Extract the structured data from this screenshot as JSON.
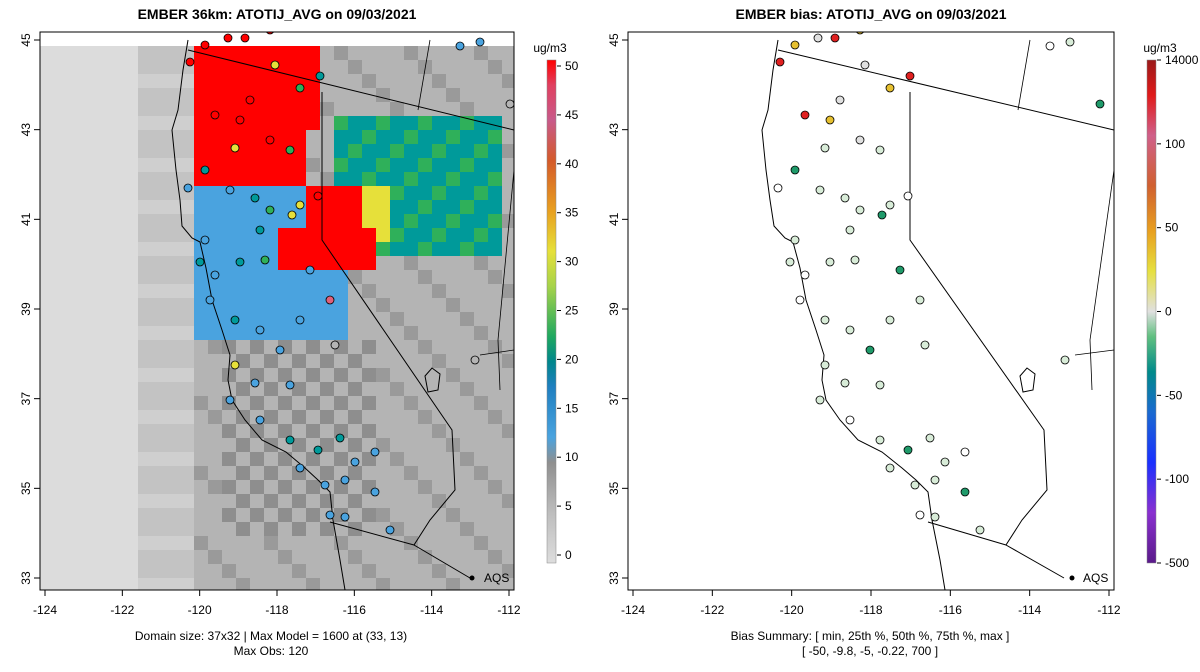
{
  "left_panel": {
    "title": "EMBER 36km: ATOTIJ_AVG on 09/03/2021",
    "x_ticks": [
      "-124",
      "-122",
      "-120",
      "-118",
      "-116",
      "-114",
      "-112"
    ],
    "y_ticks": [
      "33",
      "35",
      "37",
      "39",
      "41",
      "43",
      "45"
    ],
    "colorbar_unit": "ug/m3",
    "colorbar_ticks": [
      "0",
      "5",
      "10",
      "15",
      "20",
      "25",
      "30",
      "35",
      "40",
      "45",
      "50"
    ],
    "legend_label": "AQS",
    "footer_line1": "Domain size: 37x32 | Max Model = 1600 at (33, 13)",
    "footer_line2": "Max Obs: 120"
  },
  "right_panel": {
    "title": "EMBER bias: ATOTIJ_AVG on 09/03/2021",
    "x_ticks": [
      "-124",
      "-122",
      "-120",
      "-118",
      "-116",
      "-114",
      "-112"
    ],
    "y_ticks": [
      "33",
      "35",
      "37",
      "39",
      "41",
      "43",
      "45"
    ],
    "colorbar_unit": "ug/m3",
    "colorbar_ticks": [
      "14000",
      "100",
      "50",
      "0",
      "-50",
      "-100",
      "-500"
    ],
    "legend_label": "AQS",
    "footer_line1": "Bias Summary: [ min, 25th %, 50th %, 75th %, max ]",
    "footer_line2": "[ -50,   -9.8,   -5,   -0.22,   700 ]"
  },
  "colors": {
    "low": "#dcdcdc",
    "gray": "#b4b4b4",
    "blue": "#4aa3df",
    "teal": "#009a9a",
    "green": "#2fb05a",
    "yellow": "#e6e03a",
    "red": "#ff0000",
    "pink": "#e0607a"
  }
}
